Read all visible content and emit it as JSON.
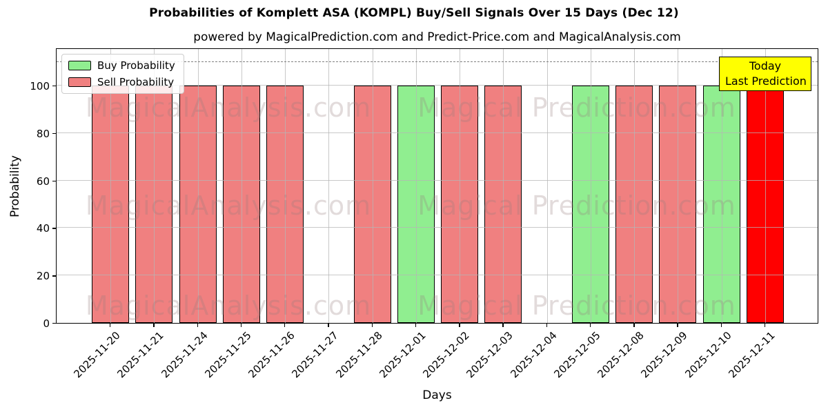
{
  "chart_data": {
    "type": "bar",
    "title": "Probabilities of Komplett ASA (KOMPL) Buy/Sell Signals Over 15 Days (Dec 12)",
    "subtitle": "powered by MagicalPrediction.com and Predict-Price.com and MagicalAnalysis.com",
    "xlabel": "Days",
    "ylabel": "Probability",
    "categories": [
      "2025-11-20",
      "2025-11-21",
      "2025-11-24",
      "2025-11-25",
      "2025-11-26",
      "2025-11-27",
      "2025-11-28",
      "2025-12-01",
      "2025-12-02",
      "2025-12-03",
      "2025-12-04",
      "2025-12-05",
      "2025-12-08",
      "2025-12-09",
      "2025-12-10",
      "2025-12-11"
    ],
    "series": [
      {
        "name": "Buy Probability",
        "color": "#90ee90",
        "values": [
          0,
          0,
          0,
          0,
          0,
          0,
          0,
          100,
          0,
          0,
          0,
          100,
          0,
          0,
          100,
          0
        ]
      },
      {
        "name": "Sell Probability",
        "color": "#f08080",
        "values": [
          100,
          100,
          100,
          100,
          100,
          0,
          100,
          0,
          100,
          100,
          0,
          0,
          100,
          100,
          0,
          100
        ]
      }
    ],
    "today": {
      "category": "2025-12-11",
      "index": 15,
      "bar_color": "#ff0000",
      "label_line1": "Today",
      "label_line2": "Last Prediction",
      "label_bg": "#ffff00"
    },
    "yticks": [
      0,
      20,
      40,
      60,
      80,
      100
    ],
    "ylim": [
      0,
      116
    ],
    "dashed_line_y": 110,
    "grid": true,
    "legend_position": "upper-left",
    "watermark_left": "MagicalAnalysis.com",
    "watermark_right": "Magical Prediction.com"
  }
}
